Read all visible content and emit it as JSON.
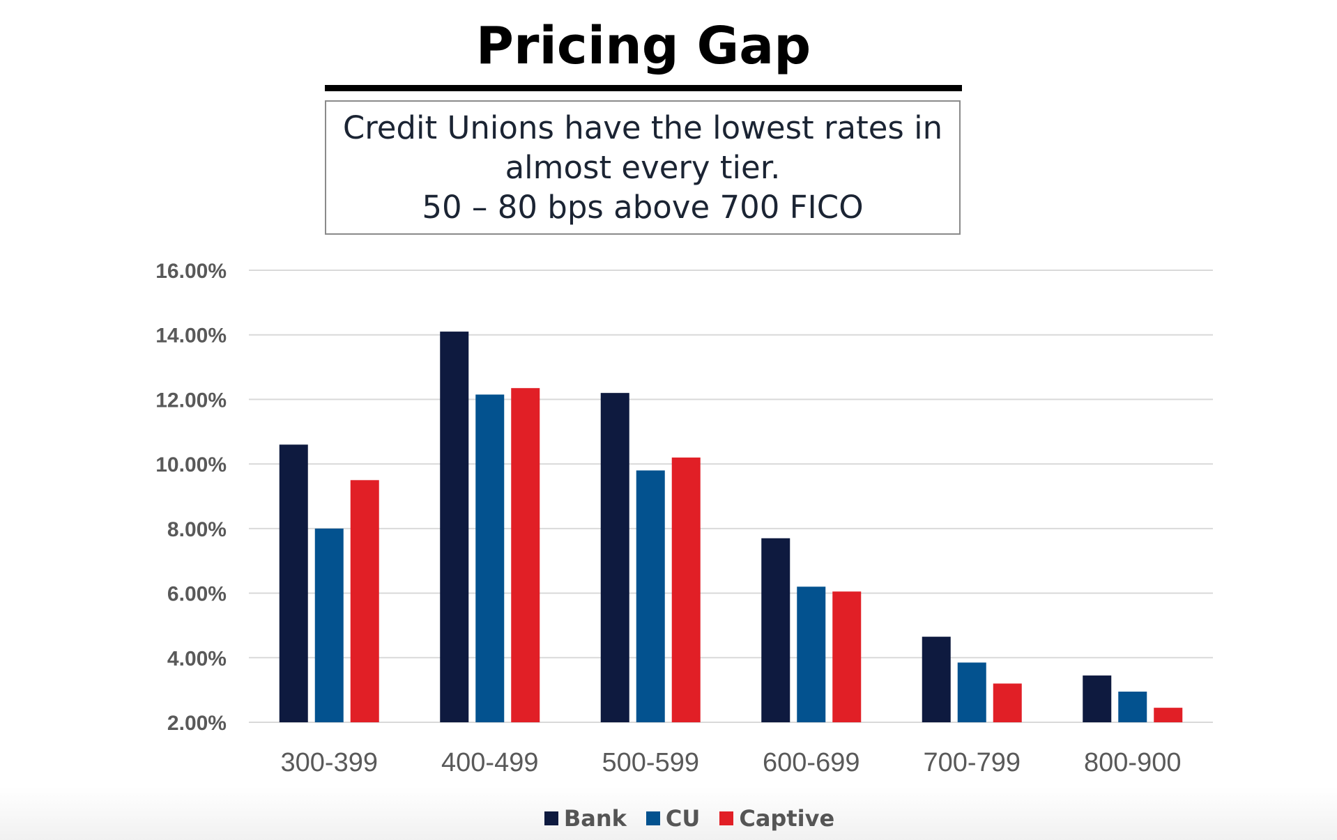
{
  "chart_data": {
    "type": "bar",
    "title": "Pricing Gap",
    "subtitle": [
      "Credit Unions have the lowest rates in",
      "almost every tier.",
      "50 – 80 bps above 700 FICO"
    ],
    "categories": [
      "300-399",
      "400-499",
      "500-599",
      "600-699",
      "700-799",
      "800-900"
    ],
    "series": [
      {
        "name": "Bank",
        "color": "#0e1a3f",
        "values": [
          10.6,
          14.1,
          12.2,
          7.7,
          4.65,
          3.45
        ]
      },
      {
        "name": "CU",
        "color": "#03528f",
        "values": [
          8.0,
          12.15,
          9.8,
          6.2,
          3.85,
          2.95
        ]
      },
      {
        "name": "Captive",
        "color": "#e11f26",
        "values": [
          9.5,
          12.35,
          10.2,
          6.05,
          3.2,
          2.45
        ]
      }
    ],
    "ylim": [
      2,
      16
    ],
    "yticks": [
      "2.00%",
      "4.00%",
      "6.00%",
      "8.00%",
      "10.00%",
      "12.00%",
      "14.00%",
      "16.00%"
    ],
    "ytick_values": [
      2,
      4,
      6,
      8,
      10,
      12,
      14,
      16
    ],
    "xlabel": "",
    "ylabel": "",
    "grid": true,
    "legend_position": "bottom"
  }
}
